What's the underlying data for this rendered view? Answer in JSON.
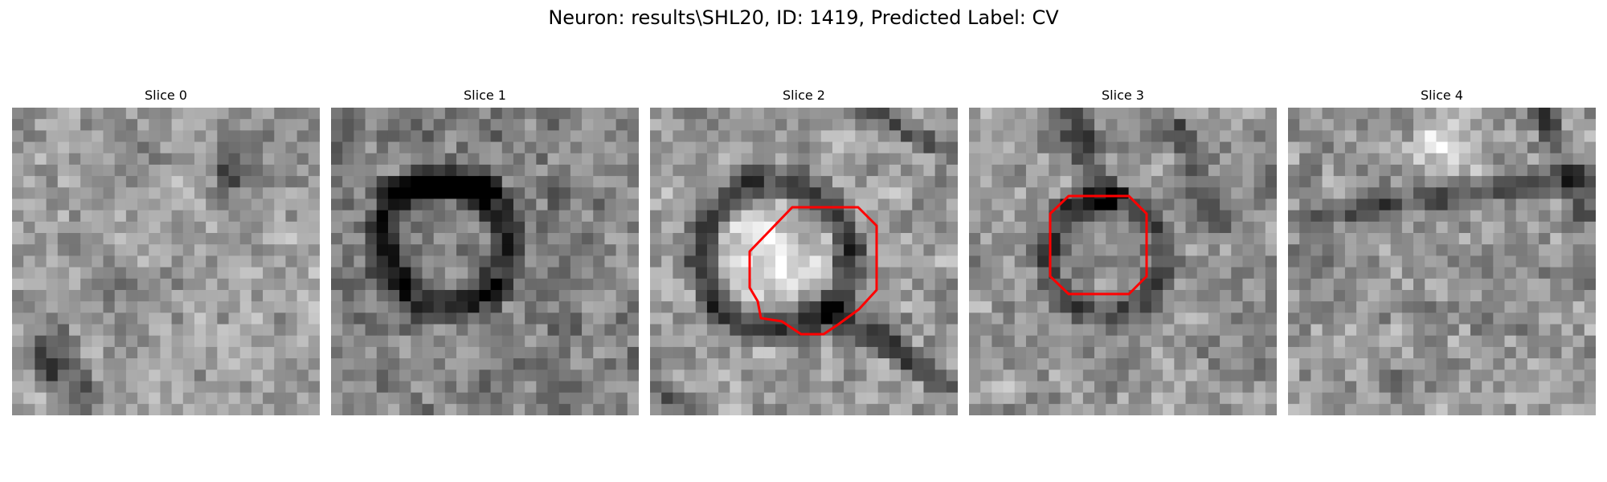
{
  "figure": {
    "title": "Neuron: results\\SHL20, ID: 1419, Predicted Label: CV"
  },
  "panels": [
    {
      "title": "Slice 0",
      "contour": false
    },
    {
      "title": "Slice 1",
      "contour": false
    },
    {
      "title": "Slice 2",
      "contour": true
    },
    {
      "title": "Slice 3",
      "contour": true
    },
    {
      "title": "Slice 4",
      "contour": false
    }
  ],
  "colors": {
    "background": "#ffffff",
    "contour": "#ff0000"
  }
}
